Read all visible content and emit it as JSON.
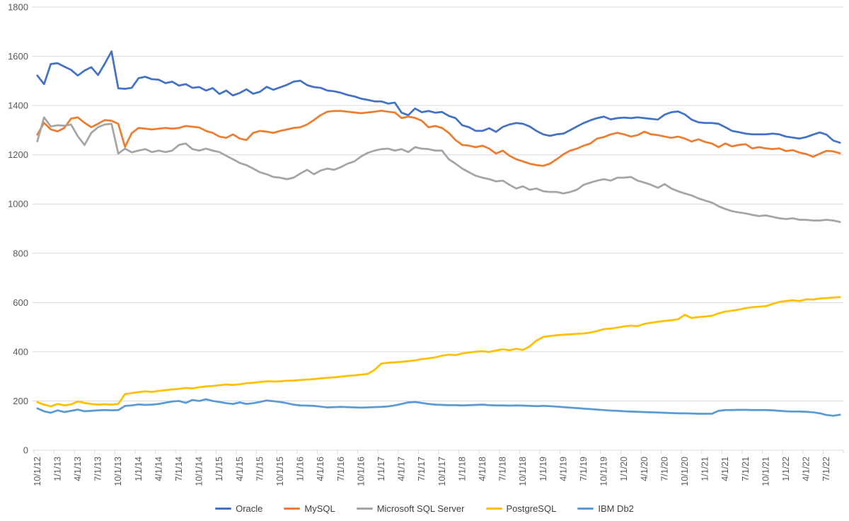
{
  "chart_data": {
    "type": "line",
    "title": "",
    "months": 120,
    "x_start_label": "10/1/12",
    "x_tick_interval": 3,
    "x_tick_labels": [
      "10/1/12",
      "1/1/13",
      "4/1/13",
      "7/1/13",
      "10/1/13",
      "1/1/14",
      "4/1/14",
      "7/1/14",
      "10/1/14",
      "1/1/15",
      "4/1/15",
      "7/1/15",
      "10/1/15",
      "1/1/16",
      "4/1/16",
      "7/1/16",
      "10/1/16",
      "1/1/17",
      "4/1/17",
      "7/1/17",
      "10/1/17",
      "1/1/18",
      "4/1/18",
      "7/1/18",
      "10/1/18",
      "1/1/19",
      "4/1/19",
      "7/1/19",
      "10/1/19",
      "1/1/20",
      "4/1/20",
      "7/1/20",
      "10/1/20",
      "1/1/21",
      "4/1/21",
      "7/1/21",
      "10/1/21",
      "1/1/22",
      "4/1/22",
      "7/1/22"
    ],
    "ylim": [
      0,
      1800
    ],
    "y_ticks": [
      0,
      200,
      400,
      600,
      800,
      1000,
      1200,
      1400,
      1600,
      1800
    ],
    "grid": "horizontal",
    "legend_position": "bottom",
    "series": [
      {
        "name": "Oracle",
        "color": "#4472C4",
        "values": [
          1522,
          1487,
          1569,
          1572,
          1558,
          1545,
          1522,
          1542,
          1556,
          1524,
          1570,
          1620,
          1470,
          1468,
          1472,
          1511,
          1517,
          1507,
          1505,
          1491,
          1497,
          1481,
          1487,
          1472,
          1475,
          1461,
          1471,
          1447,
          1461,
          1441,
          1451,
          1466,
          1448,
          1456,
          1476,
          1464,
          1474,
          1484,
          1497,
          1501,
          1483,
          1475,
          1472,
          1461,
          1458,
          1452,
          1443,
          1437,
          1428,
          1423,
          1417,
          1417,
          1408,
          1412,
          1371,
          1361,
          1388,
          1373,
          1378,
          1371,
          1374,
          1358,
          1349,
          1320,
          1312,
          1297,
          1297,
          1308,
          1293,
          1313,
          1323,
          1329,
          1326,
          1315,
          1297,
          1283,
          1277,
          1283,
          1286,
          1300,
          1315,
          1329,
          1340,
          1349,
          1355,
          1344,
          1349,
          1351,
          1349,
          1352,
          1349,
          1346,
          1343,
          1363,
          1373,
          1376,
          1364,
          1343,
          1332,
          1329,
          1329,
          1326,
          1312,
          1297,
          1292,
          1286,
          1283,
          1283,
          1283,
          1286,
          1283,
          1274,
          1270,
          1266,
          1272,
          1282,
          1291,
          1282,
          1258,
          1249
        ]
      },
      {
        "name": "MySQL",
        "color": "#ED7D31",
        "values": [
          1282,
          1330,
          1303,
          1295,
          1309,
          1347,
          1352,
          1330,
          1312,
          1326,
          1341,
          1338,
          1326,
          1232,
          1288,
          1309,
          1306,
          1303,
          1306,
          1309,
          1306,
          1309,
          1317,
          1314,
          1311,
          1297,
          1289,
          1274,
          1269,
          1283,
          1266,
          1260,
          1289,
          1297,
          1294,
          1289,
          1297,
          1303,
          1309,
          1312,
          1323,
          1341,
          1361,
          1375,
          1378,
          1378,
          1375,
          1372,
          1369,
          1372,
          1375,
          1379,
          1375,
          1372,
          1349,
          1355,
          1350,
          1338,
          1312,
          1317,
          1309,
          1289,
          1260,
          1240,
          1237,
          1231,
          1237,
          1225,
          1205,
          1217,
          1196,
          1182,
          1173,
          1164,
          1158,
          1155,
          1164,
          1182,
          1202,
          1217,
          1225,
          1237,
          1246,
          1266,
          1272,
          1283,
          1289,
          1283,
          1274,
          1280,
          1294,
          1283,
          1280,
          1274,
          1269,
          1274,
          1266,
          1254,
          1263,
          1252,
          1246,
          1231,
          1246,
          1234,
          1240,
          1243,
          1226,
          1231,
          1226,
          1223,
          1226,
          1215,
          1219,
          1209,
          1203,
          1192,
          1204,
          1216,
          1214,
          1206
        ]
      },
      {
        "name": "Microsoft SQL Server",
        "color": "#A5A5A5",
        "values": [
          1255,
          1352,
          1315,
          1320,
          1318,
          1323,
          1275,
          1240,
          1289,
          1312,
          1323,
          1326,
          1205,
          1225,
          1210,
          1217,
          1223,
          1211,
          1217,
          1211,
          1217,
          1240,
          1246,
          1223,
          1217,
          1225,
          1217,
          1211,
          1196,
          1182,
          1167,
          1158,
          1144,
          1129,
          1121,
          1110,
          1107,
          1101,
          1107,
          1124,
          1139,
          1121,
          1136,
          1144,
          1139,
          1150,
          1164,
          1173,
          1193,
          1208,
          1217,
          1223,
          1225,
          1217,
          1223,
          1211,
          1231,
          1225,
          1223,
          1217,
          1217,
          1182,
          1164,
          1144,
          1129,
          1115,
          1107,
          1101,
          1092,
          1095,
          1078,
          1063,
          1072,
          1058,
          1063,
          1052,
          1049,
          1049,
          1043,
          1049,
          1058,
          1078,
          1087,
          1095,
          1101,
          1095,
          1107,
          1107,
          1110,
          1095,
          1087,
          1078,
          1066,
          1081,
          1063,
          1052,
          1043,
          1035,
          1023,
          1014,
          1006,
          991,
          980,
          971,
          966,
          962,
          956,
          951,
          954,
          948,
          942,
          939,
          942,
          936,
          936,
          933,
          933,
          936,
          933,
          927
        ]
      },
      {
        "name": "PostgreSQL",
        "color": "#FFC000",
        "values": [
          195,
          185,
          178,
          188,
          182,
          186,
          198,
          192,
          188,
          185,
          187,
          185,
          188,
          228,
          232,
          236,
          239,
          237,
          241,
          244,
          247,
          249,
          253,
          251,
          256,
          259,
          261,
          264,
          267,
          265,
          268,
          272,
          274,
          277,
          280,
          279,
          280,
          282,
          283,
          285,
          287,
          289,
          292,
          294,
          296,
          299,
          302,
          304,
          307,
          310,
          326,
          352,
          355,
          357,
          359,
          362,
          365,
          370,
          373,
          377,
          384,
          388,
          386,
          393,
          397,
          400,
          402,
          399,
          405,
          410,
          406,
          412,
          407,
          422,
          445,
          460,
          464,
          467,
          469,
          471,
          473,
          474,
          478,
          484,
          492,
          494,
          498,
          503,
          506,
          504,
          513,
          518,
          522,
          525,
          528,
          532,
          550,
          537,
          541,
          543,
          546,
          556,
          563,
          567,
          571,
          577,
          581,
          583,
          585,
          594,
          602,
          606,
          609,
          606,
          613,
          612,
          616,
          618,
          620,
          622
        ]
      },
      {
        "name": "IBM Db2",
        "color": "#5B9BD5",
        "values": [
          170,
          158,
          152,
          162,
          155,
          160,
          165,
          158,
          160,
          162,
          163,
          162,
          163,
          180,
          182,
          186,
          184,
          185,
          188,
          193,
          198,
          200,
          192,
          204,
          200,
          207,
          200,
          196,
          191,
          188,
          194,
          188,
          191,
          196,
          202,
          199,
          196,
          191,
          185,
          182,
          181,
          180,
          177,
          174,
          175,
          176,
          175,
          174,
          173,
          174,
          175,
          176,
          178,
          182,
          188,
          194,
          196,
          192,
          188,
          185,
          184,
          183,
          183,
          182,
          183,
          184,
          185,
          183,
          182,
          182,
          181,
          182,
          181,
          180,
          179,
          180,
          179,
          177,
          175,
          173,
          171,
          169,
          167,
          165,
          163,
          161,
          160,
          158,
          157,
          156,
          155,
          154,
          153,
          152,
          151,
          150,
          150,
          149,
          148,
          148,
          148,
          160,
          163,
          163,
          164,
          164,
          163,
          163,
          163,
          162,
          160,
          158,
          157,
          157,
          156,
          154,
          150,
          143,
          140,
          144
        ]
      }
    ],
    "style": {
      "gridline_color": "#D9D9D9",
      "axis_line_color": "#D9D9D9",
      "tick_color": "#D9D9D9",
      "axis_label_color": "#595959",
      "legend_text_color": "#404040",
      "background": "#FFFFFF",
      "line_width": 2.75
    }
  }
}
